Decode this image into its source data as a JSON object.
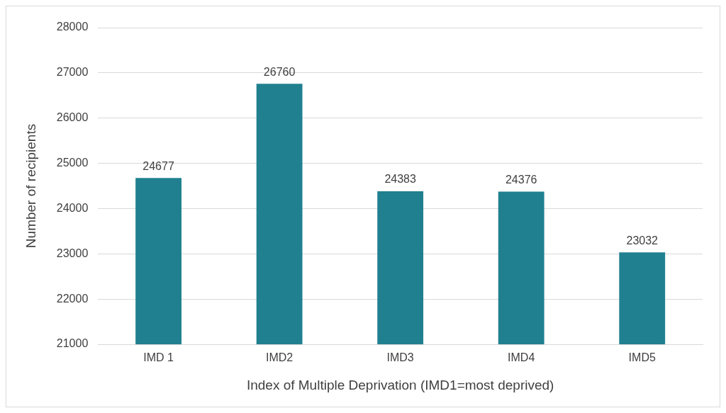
{
  "chart_data": {
    "type": "bar",
    "xlabel": "Index of Multiple Deprivation (IMD1=most deprived)",
    "ylabel": "Number of recipients",
    "categories": [
      "IMD 1",
      "IMD2",
      "IMD3",
      "IMD4",
      "IMD5"
    ],
    "values": [
      24677,
      26760,
      24383,
      24376,
      23032
    ],
    "color": "#20808f",
    "ylim": [
      21000,
      28000
    ],
    "yticks": [
      21000,
      22000,
      23000,
      24000,
      25000,
      26000,
      27000,
      28000
    ],
    "grid": "y",
    "data_labels": true
  }
}
